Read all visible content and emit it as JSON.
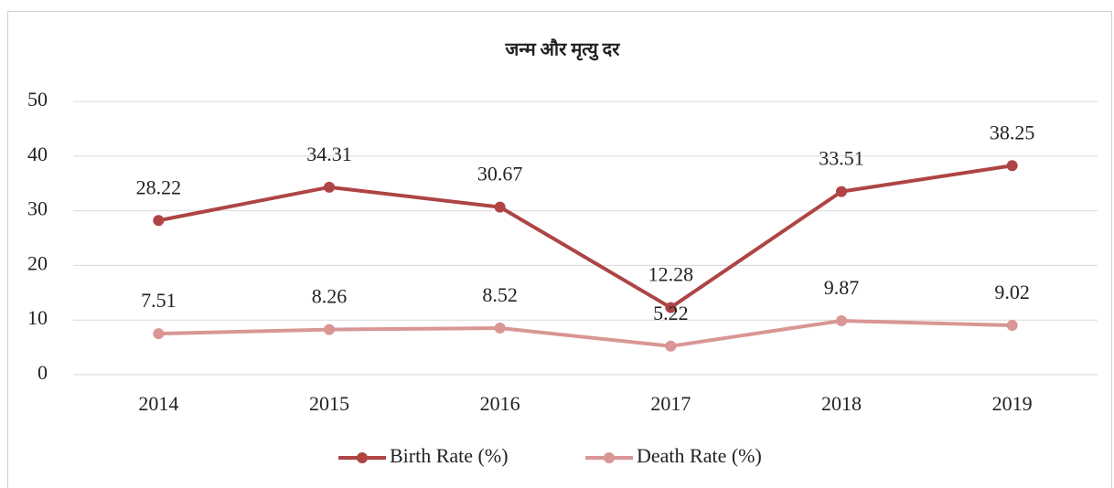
{
  "chart_data": {
    "type": "line",
    "title": "जन्म और मृत्यु दर",
    "categories": [
      "2014",
      "2015",
      "2016",
      "2017",
      "2018",
      "2019"
    ],
    "series": [
      {
        "name": "Birth Rate (%)",
        "color": "#ae4444",
        "values": [
          28.22,
          34.31,
          30.67,
          12.28,
          33.51,
          38.25
        ]
      },
      {
        "name": "Death Rate (%)",
        "color": "#d99694",
        "values": [
          7.51,
          8.26,
          8.52,
          5.22,
          9.87,
          9.02
        ]
      }
    ],
    "ylim": [
      0,
      50
    ],
    "yticks": [
      0,
      10,
      20,
      30,
      40,
      50
    ],
    "grid": true,
    "legend": "bottom"
  }
}
